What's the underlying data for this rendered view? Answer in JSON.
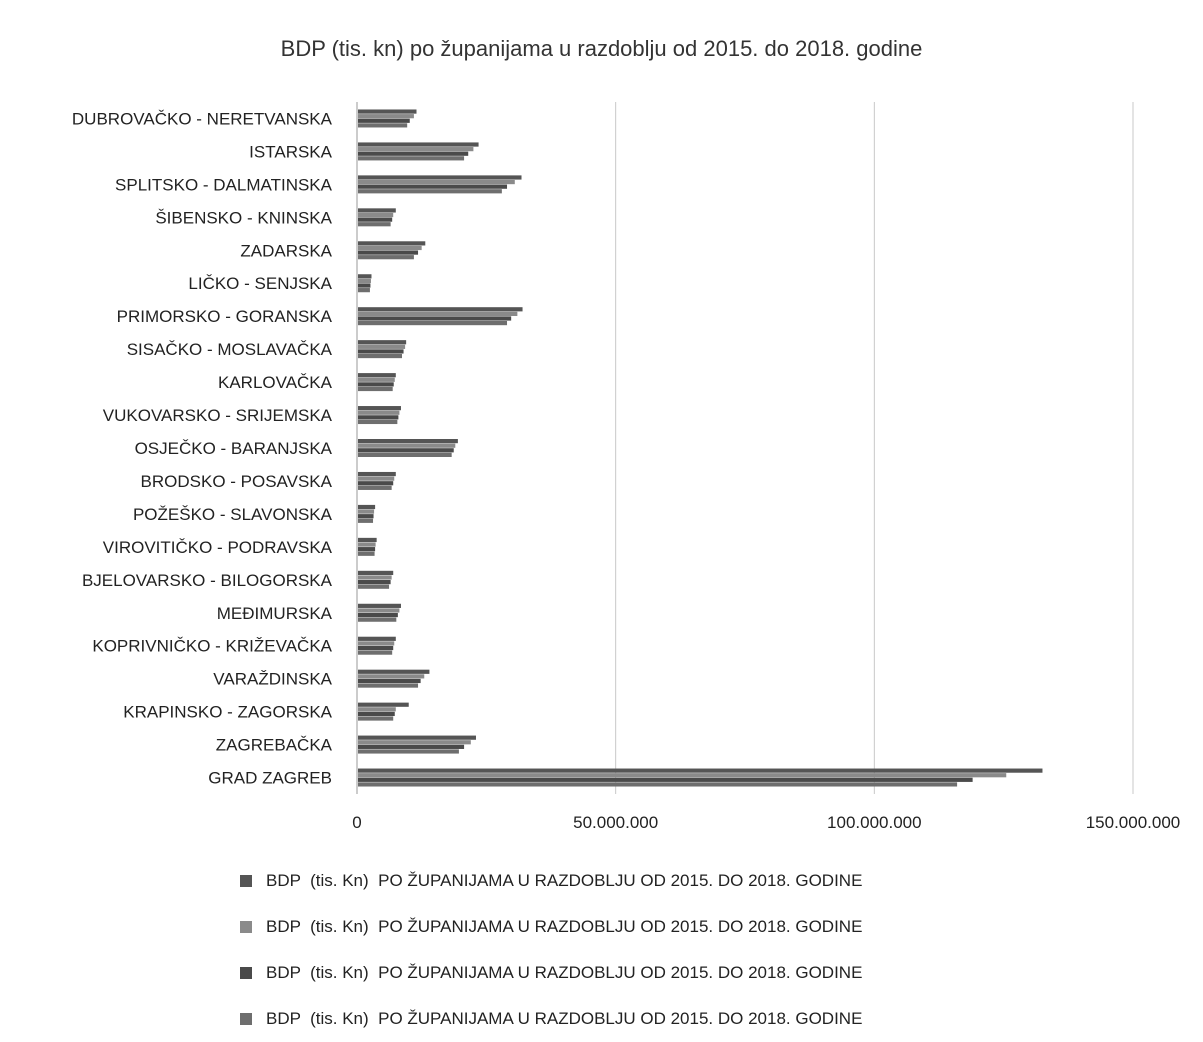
{
  "chart_data": {
    "type": "bar",
    "orientation": "horizontal",
    "title": "BDP (tis. kn) po županijama u razdoblju od 2015. do 2018. godine",
    "xlabel": "",
    "ylabel": "",
    "xlim": [
      0,
      150000000
    ],
    "x_ticks": [
      "0",
      "50.000.000",
      "100.000.000",
      "150.000.000"
    ],
    "grid": "vertical",
    "legend_position": "bottom",
    "categories": [
      "DUBROVAČKO - NERETVANSKA",
      "ISTARSKA",
      "SPLITSKO - DALMATINSKA",
      "ŠIBENSKO - KNINSKA",
      "ZADARSKA",
      "LIČKO - SENJSKA",
      "PRIMORSKO - GORANSKA",
      "SISAČKO - MOSLAVAČKA",
      "KARLOVAČKA",
      "VUKOVARSKO - SRIJEMSKA",
      "OSJEČKO - BARANJSKA",
      "BRODSKO - POSAVSKA",
      "POŽEŠKO - SLAVONSKA",
      "VIROVITIČKO - PODRAVSKA",
      "BJELOVARSKO - BILOGORSKA",
      "MEĐIMURSKA",
      "KOPRIVNIČKO - KRIŽEVAČKA",
      "VARAŽDINSKA",
      "KRAPINSKO - ZAGORSKA",
      "ZAGREBAČKA",
      "GRAD ZAGREB"
    ],
    "series": [
      {
        "name": "BDP  (tis. Kn)  PO ŽUPANIJAMA U RAZDOBLJU OD 2015. DO 2018. GODINE",
        "color": "#555555",
        "values": [
          11500000,
          23500000,
          31800000,
          7500000,
          13200000,
          2800000,
          32000000,
          9500000,
          7500000,
          8500000,
          19500000,
          7500000,
          3500000,
          3800000,
          7000000,
          8500000,
          7500000,
          14000000,
          10000000,
          23000000,
          132500000
        ]
      },
      {
        "name": "BDP  (tis. Kn)  PO ŽUPANIJAMA U RAZDOBLJU OD 2015. DO 2018. GODINE",
        "color": "#8a8a8a",
        "values": [
          11000000,
          22500000,
          30500000,
          7000000,
          12500000,
          2700000,
          31000000,
          9300000,
          7300000,
          8200000,
          19000000,
          7200000,
          3300000,
          3600000,
          6700000,
          8200000,
          7200000,
          13000000,
          7500000,
          22000000,
          125500000
        ]
      },
      {
        "name": "BDP  (tis. Kn)  PO ŽUPANIJAMA U RAZDOBLJU OD 2015. DO 2018. GODINE",
        "color": "#4a4a4a",
        "values": [
          10200000,
          21500000,
          29000000,
          6800000,
          11800000,
          2600000,
          29800000,
          9000000,
          7100000,
          8000000,
          18700000,
          7000000,
          3200000,
          3500000,
          6500000,
          7900000,
          7000000,
          12300000,
          7300000,
          20700000,
          119000000
        ]
      },
      {
        "name": "BDP  (tis. Kn)  PO ŽUPANIJAMA U RAZDOBLJU OD 2015. DO 2018. GODINE",
        "color": "#6e6e6e",
        "values": [
          9700000,
          20700000,
          28000000,
          6500000,
          11000000,
          2500000,
          29000000,
          8700000,
          6900000,
          7800000,
          18300000,
          6700000,
          3100000,
          3400000,
          6200000,
          7600000,
          6800000,
          11800000,
          7000000,
          19700000,
          116000000
        ]
      }
    ]
  }
}
